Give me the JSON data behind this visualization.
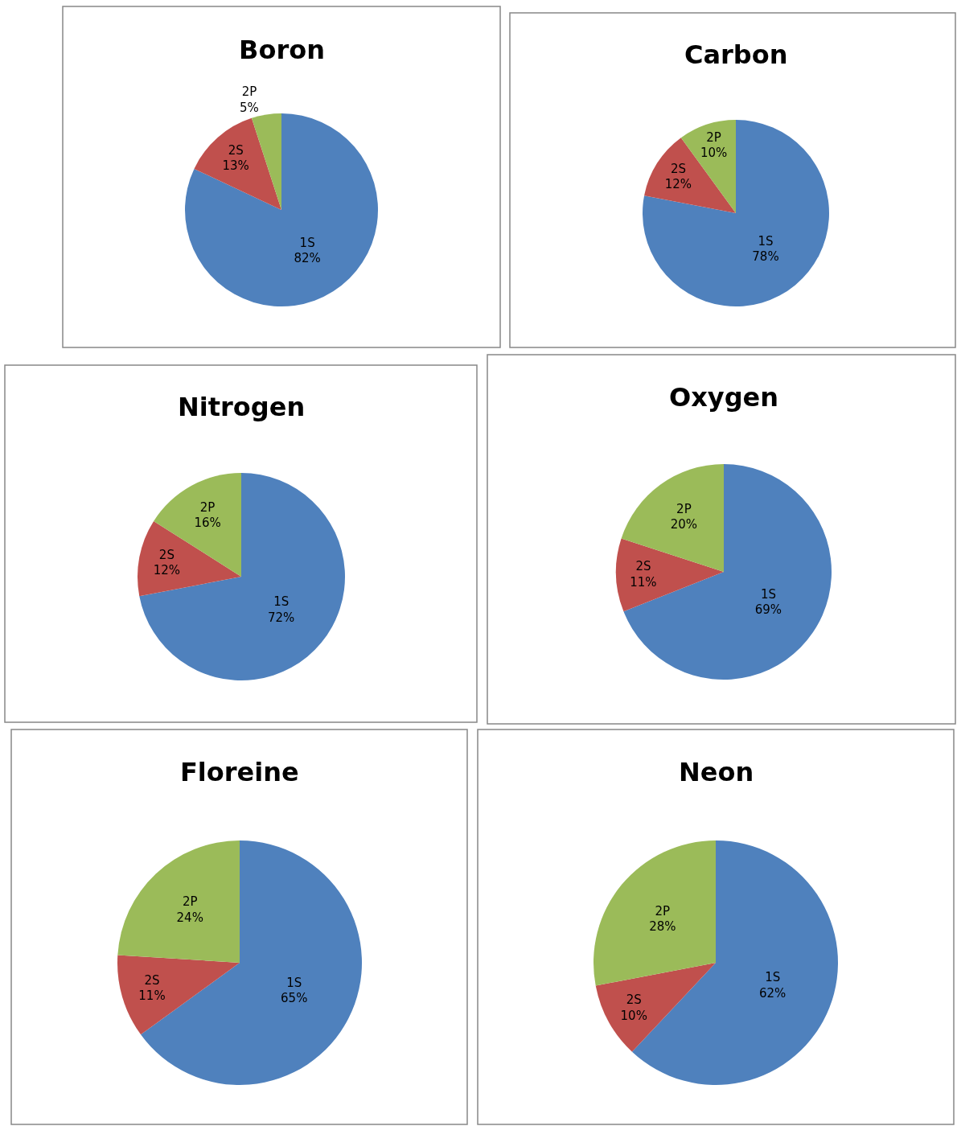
{
  "chart_data": [
    {
      "type": "pie",
      "title": "Boron",
      "categories": [
        "1S",
        "2S",
        "2P"
      ],
      "values": [
        82,
        13,
        5
      ],
      "colors": [
        "#4f81bd",
        "#c0504d",
        "#9bbb59"
      ],
      "value_labels": [
        "82%",
        "13%",
        "5%"
      ]
    },
    {
      "type": "pie",
      "title": "Carbon",
      "categories": [
        "1S",
        "2S",
        "2P"
      ],
      "values": [
        78,
        12,
        10
      ],
      "colors": [
        "#4f81bd",
        "#c0504d",
        "#9bbb59"
      ],
      "value_labels": [
        "78%",
        "12%",
        "10%"
      ]
    },
    {
      "type": "pie",
      "title": "Nitrogen",
      "categories": [
        "1S",
        "2S",
        "2P"
      ],
      "values": [
        72,
        12,
        16
      ],
      "colors": [
        "#4f81bd",
        "#c0504d",
        "#9bbb59"
      ],
      "value_labels": [
        "72%",
        "12%",
        "16%"
      ]
    },
    {
      "type": "pie",
      "title": "Oxygen",
      "categories": [
        "1S",
        "2S",
        "2P"
      ],
      "values": [
        69,
        11,
        20
      ],
      "colors": [
        "#4f81bd",
        "#c0504d",
        "#9bbb59"
      ],
      "value_labels": [
        "69%",
        "11%",
        "20%"
      ]
    },
    {
      "type": "pie",
      "title": "Floreine",
      "categories": [
        "1S",
        "2S",
        "2P"
      ],
      "values": [
        65,
        11,
        24
      ],
      "colors": [
        "#4f81bd",
        "#c0504d",
        "#9bbb59"
      ],
      "value_labels": [
        "65%",
        "11%",
        "24%"
      ]
    },
    {
      "type": "pie",
      "title": "Neon",
      "categories": [
        "1S",
        "2S",
        "2P"
      ],
      "values": [
        62,
        10,
        28
      ],
      "colors": [
        "#4f81bd",
        "#c0504d",
        "#9bbb59"
      ],
      "value_labels": [
        "62%",
        "10%",
        "28%"
      ]
    }
  ]
}
